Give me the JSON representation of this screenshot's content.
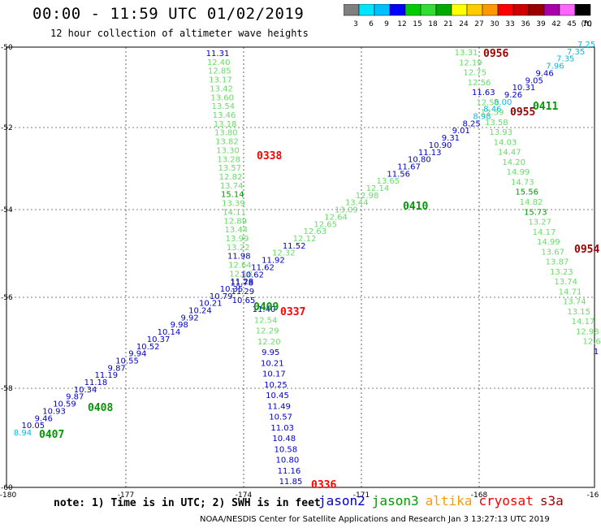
{
  "header": {
    "title": "00:00 - 11:59 UTC 01/02/2019",
    "subtitle": "12 hour collection of altimeter wave heights"
  },
  "colorbar": {
    "labels": [
      "3",
      "6",
      "9",
      "12",
      "15",
      "18",
      "21",
      "24",
      "27",
      "30",
      "33",
      "36",
      "39",
      "42",
      "45",
      "70"
    ],
    "unit": "(ft)",
    "colors": [
      "#7f7f7f",
      "#00e5ff",
      "#00bfff",
      "#0000ff",
      "#00cc00",
      "#33dd33",
      "#00aa00",
      "#ffff00",
      "#ffcc00",
      "#ff9900",
      "#ff0000",
      "#cc0000",
      "#990000",
      "#aa00aa",
      "#ff66ff",
      "#000000"
    ]
  },
  "axes": {
    "lon_labels": [
      "-180",
      "-177",
      "-174",
      "-171",
      "-168",
      "-16"
    ],
    "lat_labels": [
      "-50",
      "-52",
      "-54",
      "-56",
      "-58",
      "-60"
    ]
  },
  "sat_colors": {
    "jason2": "#0000cc",
    "jason3": "#009900",
    "altika": "#ff9900",
    "cryosat": "#ff0000",
    "s3a": "#990000",
    "lightgreen": "#66dd66",
    "cyan": "#00bbdd"
  },
  "tracks": [
    {
      "id": "track-0338",
      "time_label": "0338",
      "time_color": "cryosat",
      "points": [
        [
          "11.31",
          "jason2"
        ],
        [
          "12.40",
          "lightgreen"
        ],
        [
          "12.85",
          "lightgreen"
        ],
        [
          "13.17",
          "lightgreen"
        ],
        [
          "13.42",
          "lightgreen"
        ],
        [
          "13.60",
          "lightgreen"
        ],
        [
          "13.54",
          "lightgreen"
        ],
        [
          "13.46",
          "lightgreen"
        ],
        [
          "13.18",
          "lightgreen"
        ],
        [
          "13.80",
          "lightgreen"
        ],
        [
          "13.82",
          "lightgreen"
        ],
        [
          "13.30",
          "lightgreen"
        ],
        [
          "13.28",
          "lightgreen"
        ],
        [
          "13.57",
          "lightgreen"
        ],
        [
          "12.82",
          "lightgreen"
        ],
        [
          "13.74",
          "lightgreen"
        ],
        [
          "15.14",
          "jason3"
        ],
        [
          "13.39",
          "lightgreen"
        ],
        [
          "14.11",
          "lightgreen"
        ],
        [
          "12.89",
          "lightgreen"
        ],
        [
          "13.44",
          "lightgreen"
        ],
        [
          "13.99",
          "lightgreen"
        ],
        [
          "13.22",
          "lightgreen"
        ],
        [
          "11.98",
          "jason2"
        ],
        [
          "12.64",
          "lightgreen"
        ],
        [
          "12.18",
          "lightgreen"
        ],
        [
          "11.78",
          "jason2"
        ],
        [
          "11.29",
          "jason2"
        ],
        [
          "10.65",
          "jason2"
        ]
      ]
    },
    {
      "id": "track-0337",
      "time_label": "0337",
      "time_color": "cryosat",
      "points": [
        [
          "11.40",
          "jason2"
        ],
        [
          "12.54",
          "lightgreen"
        ],
        [
          "12.29",
          "lightgreen"
        ],
        [
          "12.20",
          "lightgreen"
        ],
        [
          "9.95",
          "jason2"
        ],
        [
          "10.21",
          "jason2"
        ],
        [
          "10.17",
          "jason2"
        ],
        [
          "10.25",
          "jason2"
        ],
        [
          "10.45",
          "jason2"
        ],
        [
          "11.49",
          "jason2"
        ],
        [
          "10.57",
          "jason2"
        ],
        [
          "11.03",
          "jason2"
        ],
        [
          "10.48",
          "jason2"
        ],
        [
          "10.58",
          "jason2"
        ],
        [
          "10.80",
          "jason2"
        ],
        [
          "11.16",
          "jason2"
        ],
        [
          "11.85",
          "jason2"
        ]
      ]
    },
    {
      "id": "track-0336",
      "time_label": "0336",
      "time_color": "cryosat"
    },
    {
      "id": "track-0407-0411",
      "labels": [
        {
          "text": "0407",
          "color": "jason3"
        },
        {
          "text": "0408",
          "color": "jason3"
        },
        {
          "text": "0409",
          "color": "jason3"
        },
        {
          "text": "0410",
          "color": "jason3"
        },
        {
          "text": "0411",
          "color": "jason3"
        }
      ],
      "points": [
        [
          "8.94",
          "cyan"
        ],
        [
          "10.05",
          "jason2"
        ],
        [
          "9.46",
          "jason2"
        ],
        [
          "10.93",
          "jason2"
        ],
        [
          "10.59",
          "jason2"
        ],
        [
          "9.87",
          "jason2"
        ],
        [
          "10.34",
          "jason2"
        ],
        [
          "11.18",
          "jason2"
        ],
        [
          "11.19",
          "jason2"
        ],
        [
          "9.87",
          "jason2"
        ],
        [
          "10.55",
          "jason2"
        ],
        [
          "9.94",
          "jason2"
        ],
        [
          "10.52",
          "jason2"
        ],
        [
          "10.37",
          "jason2"
        ],
        [
          "10.14",
          "jason2"
        ],
        [
          "9.98",
          "jason2"
        ],
        [
          "9.92",
          "jason2"
        ],
        [
          "10.24",
          "jason2"
        ],
        [
          "10.21",
          "jason2"
        ],
        [
          "10.79",
          "jason2"
        ],
        [
          "10.35",
          "jason2"
        ],
        [
          "11.28",
          "jason2"
        ],
        [
          "10.62",
          "jason2"
        ],
        [
          "11.62",
          "jason2"
        ],
        [
          "11.92",
          "jason2"
        ],
        [
          "12.32",
          "lightgreen"
        ],
        [
          "11.52",
          "jason2"
        ],
        [
          "12.12",
          "lightgreen"
        ],
        [
          "12.63",
          "lightgreen"
        ],
        [
          "12.65",
          "lightgreen"
        ],
        [
          "12.64",
          "lightgreen"
        ],
        [
          "13.09",
          "lightgreen"
        ],
        [
          "13.44",
          "lightgreen"
        ],
        [
          "12.98",
          "lightgreen"
        ],
        [
          "12.14",
          "lightgreen"
        ],
        [
          "13.65",
          "lightgreen"
        ],
        [
          "11.56",
          "jason2"
        ],
        [
          "11.67",
          "jason2"
        ],
        [
          "10.80",
          "jason2"
        ],
        [
          "11.13",
          "jason2"
        ],
        [
          "10.90",
          "jason2"
        ],
        [
          "9.31",
          "jason2"
        ],
        [
          "9.01",
          "jason2"
        ],
        [
          "8.25",
          "jason2"
        ],
        [
          "8.98",
          "cyan"
        ],
        [
          "8.46",
          "cyan"
        ],
        [
          "8.00",
          "cyan"
        ],
        [
          "9.26",
          "jason2"
        ],
        [
          "10.31",
          "jason2"
        ],
        [
          "9.05",
          "jason2"
        ],
        [
          "9.46",
          "jason2"
        ],
        [
          "7.96",
          "cyan"
        ],
        [
          "7.35",
          "cyan"
        ],
        [
          "7.35",
          "cyan"
        ],
        [
          "7.25",
          "cyan"
        ]
      ]
    },
    {
      "id": "track-0956-0954",
      "labels": [
        {
          "text": "0956",
          "color": "s3a"
        },
        {
          "text": "0955",
          "color": "s3a"
        },
        {
          "text": "0954",
          "color": "s3a"
        }
      ],
      "points": [
        [
          "13.31",
          "lightgreen"
        ],
        [
          "12.19",
          "lightgreen"
        ],
        [
          "12.75",
          "lightgreen"
        ],
        [
          "12.56",
          "lightgreen"
        ],
        [
          "11.63",
          "jason2"
        ],
        [
          "12.50",
          "lightgreen"
        ],
        [
          "12.59",
          "lightgreen"
        ],
        [
          "13.58",
          "lightgreen"
        ],
        [
          "13.93",
          "lightgreen"
        ],
        [
          "14.03",
          "lightgreen"
        ],
        [
          "14.47",
          "lightgreen"
        ],
        [
          "14.20",
          "lightgreen"
        ],
        [
          "14.99",
          "lightgreen"
        ],
        [
          "14.73",
          "lightgreen"
        ],
        [
          "15.56",
          "jason3"
        ],
        [
          "14.82",
          "lightgreen"
        ],
        [
          "15.73",
          "jason3"
        ],
        [
          "13.27",
          "lightgreen"
        ],
        [
          "14.17",
          "lightgreen"
        ],
        [
          "14.99",
          "lightgreen"
        ],
        [
          "13.67",
          "lightgreen"
        ],
        [
          "13.87",
          "lightgreen"
        ],
        [
          "13.23",
          "lightgreen"
        ],
        [
          "13.74",
          "lightgreen"
        ],
        [
          "14.71",
          "lightgreen"
        ],
        [
          "13.74",
          "lightgreen"
        ],
        [
          "13.15",
          "lightgreen"
        ],
        [
          "14.17",
          "lightgreen"
        ],
        [
          "12.98",
          "lightgreen"
        ],
        [
          "12.6",
          "lightgreen"
        ],
        [
          "1",
          "jason2"
        ]
      ]
    }
  ],
  "footer": {
    "note": "note: 1) Time is in UTC; 2) SWH is in feet",
    "satellites": [
      {
        "name": "jason2",
        "color": "jason2"
      },
      {
        "name": "jason3",
        "color": "jason3"
      },
      {
        "name": "altika",
        "color": "altika"
      },
      {
        "name": "cryosat",
        "color": "cryosat"
      },
      {
        "name": "s3a",
        "color": "s3a"
      }
    ],
    "credit": "NOAA/NESDIS Center for Satellite Applications and Research  Jan  3 13:27:13 UTC 2019"
  }
}
